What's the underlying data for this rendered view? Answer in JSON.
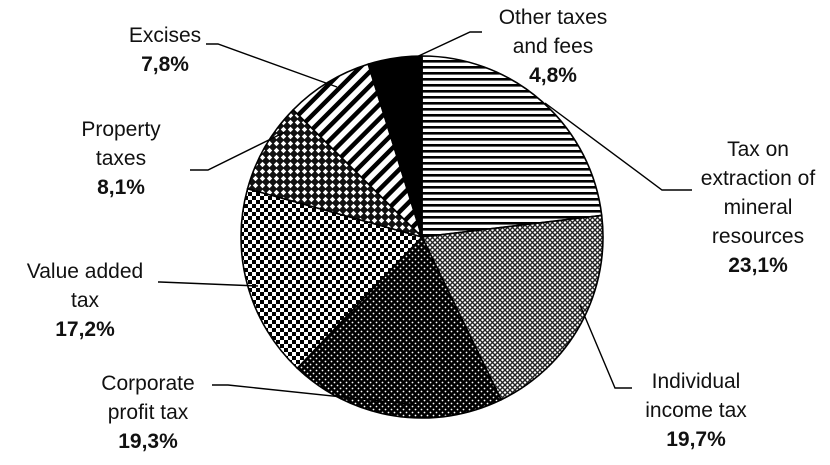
{
  "chart_data": {
    "type": "pie",
    "title": "",
    "start_angle_deg": 0,
    "direction": "clockwise",
    "slices": [
      {
        "key": "mineral",
        "label_lines": [
          "Tax on",
          "extraction of",
          "mineral",
          "resources"
        ],
        "value": 23.1,
        "value_label": "23,1%",
        "pattern": "hstripes"
      },
      {
        "key": "individual",
        "label_lines": [
          "Individual",
          "income tax"
        ],
        "value": 19.7,
        "value_label": "19,7%",
        "pattern": "crosshatch"
      },
      {
        "key": "corporate",
        "label_lines": [
          "Corporate",
          "profit  tax"
        ],
        "value": 19.3,
        "value_label": "19,3%",
        "pattern": "dots-dark"
      },
      {
        "key": "vat",
        "label_lines": [
          "Value added",
          "tax"
        ],
        "value": 17.2,
        "value_label": "17,2%",
        "pattern": "checker"
      },
      {
        "key": "property",
        "label_lines": [
          "Property",
          "taxes"
        ],
        "value": 8.1,
        "value_label": "8,1%",
        "pattern": "diamonds"
      },
      {
        "key": "excises",
        "label_lines": [
          "Excises"
        ],
        "value": 7.8,
        "value_label": "7,8%",
        "pattern": "dstripes"
      },
      {
        "key": "other",
        "label_lines": [
          "Other taxes",
          "and fees"
        ],
        "value": 4.8,
        "value_label": "4,8%",
        "pattern": "solid-black"
      }
    ]
  }
}
